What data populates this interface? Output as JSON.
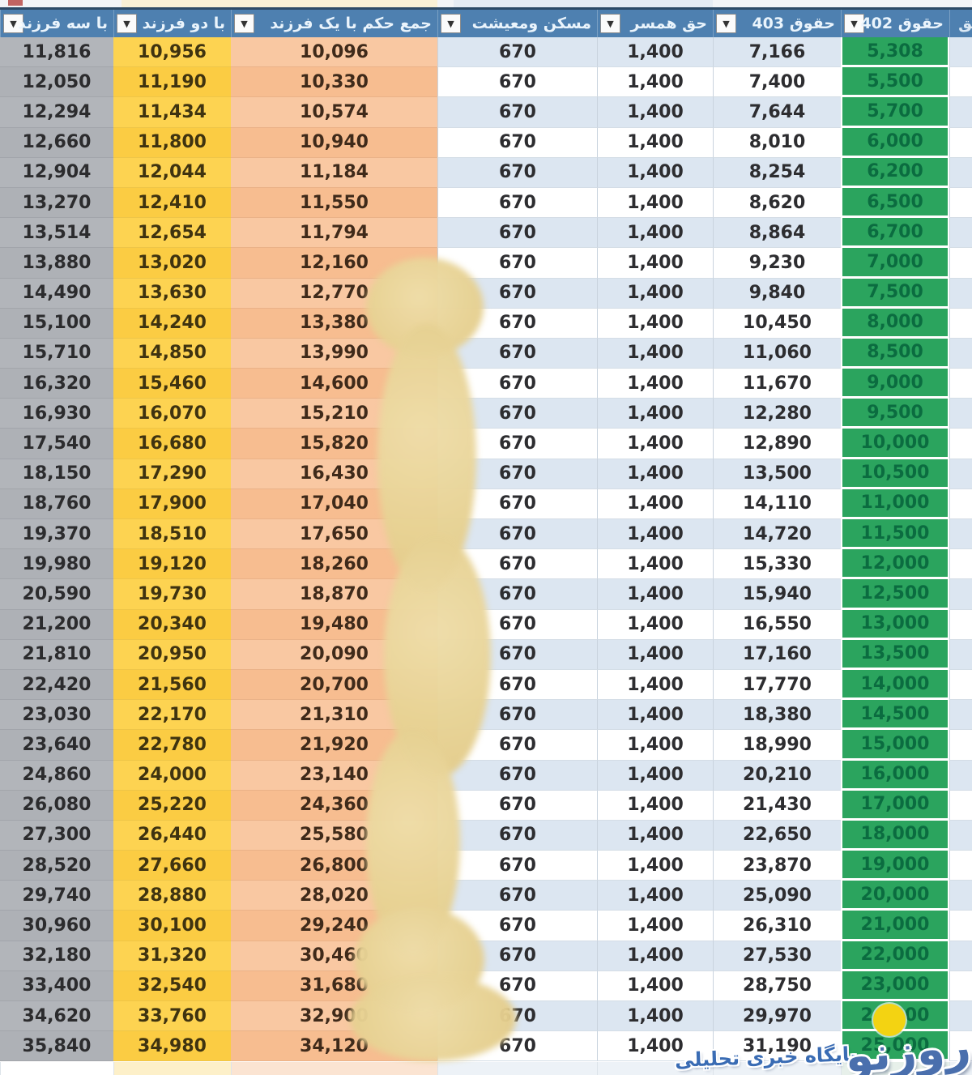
{
  "header": {
    "bg": "#4e80b0",
    "text_color": "#eaf4fc",
    "dropdown_icon": "▼",
    "sliver_partial_label": "حق"
  },
  "banding": {
    "odd": "#dce6f1",
    "even": "#ffffff"
  },
  "table": {
    "columns": [
      {
        "key": "three_children",
        "label": "با سه فرزند",
        "fill": "#b2b5ba",
        "fill_alt": "#aeb1b6",
        "type": "solid"
      },
      {
        "key": "two_children",
        "label": "با دو فرزند",
        "fill": "#fdd351",
        "fill_alt": "#fbcc43",
        "type": "solid"
      },
      {
        "key": "one_child_total",
        "label": "جمع حکم با یک فرزند",
        "fill": "#f9c8a2",
        "fill_alt": "#f7bd90",
        "type": "solid"
      },
      {
        "key": "housing",
        "label": "مسکن ومعیشت",
        "fill": "",
        "fill_alt": "",
        "type": "banded"
      },
      {
        "key": "spouse",
        "label": "حق همسر",
        "fill": "",
        "fill_alt": "",
        "type": "banded"
      },
      {
        "key": "salary_403",
        "label": "حقوق 403",
        "fill": "",
        "fill_alt": "",
        "type": "banded"
      },
      {
        "key": "salary_402",
        "label": "حقوق 402",
        "fill": "#2ba45e",
        "fill_alt": "#2ba45e",
        "type": "solid"
      }
    ],
    "rows": [
      [
        "11,816",
        "10,956",
        "10,096",
        "670",
        "1,400",
        "7,166",
        "5,308"
      ],
      [
        "12,050",
        "11,190",
        "10,330",
        "670",
        "1,400",
        "7,400",
        "5,500"
      ],
      [
        "12,294",
        "11,434",
        "10,574",
        "670",
        "1,400",
        "7,644",
        "5,700"
      ],
      [
        "12,660",
        "11,800",
        "10,940",
        "670",
        "1,400",
        "8,010",
        "6,000"
      ],
      [
        "12,904",
        "12,044",
        "11,184",
        "670",
        "1,400",
        "8,254",
        "6,200"
      ],
      [
        "13,270",
        "12,410",
        "11,550",
        "670",
        "1,400",
        "8,620",
        "6,500"
      ],
      [
        "13,514",
        "12,654",
        "11,794",
        "670",
        "1,400",
        "8,864",
        "6,700"
      ],
      [
        "13,880",
        "13,020",
        "12,160",
        "670",
        "1,400",
        "9,230",
        "7,000"
      ],
      [
        "14,490",
        "13,630",
        "12,770",
        "670",
        "1,400",
        "9,840",
        "7,500"
      ],
      [
        "15,100",
        "14,240",
        "13,380",
        "670",
        "1,400",
        "10,450",
        "8,000"
      ],
      [
        "15,710",
        "14,850",
        "13,990",
        "670",
        "1,400",
        "11,060",
        "8,500"
      ],
      [
        "16,320",
        "15,460",
        "14,600",
        "670",
        "1,400",
        "11,670",
        "9,000"
      ],
      [
        "16,930",
        "16,070",
        "15,210",
        "670",
        "1,400",
        "12,280",
        "9,500"
      ],
      [
        "17,540",
        "16,680",
        "15,820",
        "670",
        "1,400",
        "12,890",
        "10,000"
      ],
      [
        "18,150",
        "17,290",
        "16,430",
        "670",
        "1,400",
        "13,500",
        "10,500"
      ],
      [
        "18,760",
        "17,900",
        "17,040",
        "670",
        "1,400",
        "14,110",
        "11,000"
      ],
      [
        "19,370",
        "18,510",
        "17,650",
        "670",
        "1,400",
        "14,720",
        "11,500"
      ],
      [
        "19,980",
        "19,120",
        "18,260",
        "670",
        "1,400",
        "15,330",
        "12,000"
      ],
      [
        "20,590",
        "19,730",
        "18,870",
        "670",
        "1,400",
        "15,940",
        "12,500"
      ],
      [
        "21,200",
        "20,340",
        "19,480",
        "670",
        "1,400",
        "16,550",
        "13,000"
      ],
      [
        "21,810",
        "20,950",
        "20,090",
        "670",
        "1,400",
        "17,160",
        "13,500"
      ],
      [
        "22,420",
        "21,560",
        "20,700",
        "670",
        "1,400",
        "17,770",
        "14,000"
      ],
      [
        "23,030",
        "22,170",
        "21,310",
        "670",
        "1,400",
        "18,380",
        "14,500"
      ],
      [
        "23,640",
        "22,780",
        "21,920",
        "670",
        "1,400",
        "18,990",
        "15,000"
      ],
      [
        "24,860",
        "24,000",
        "23,140",
        "670",
        "1,400",
        "20,210",
        "16,000"
      ],
      [
        "26,080",
        "25,220",
        "24,360",
        "670",
        "1,400",
        "21,430",
        "17,000"
      ],
      [
        "27,300",
        "26,440",
        "25,580",
        "670",
        "1,400",
        "22,650",
        "18,000"
      ],
      [
        "28,520",
        "27,660",
        "26,800",
        "670",
        "1,400",
        "23,870",
        "19,000"
      ],
      [
        "29,740",
        "28,880",
        "28,020",
        "670",
        "1,400",
        "25,090",
        "20,000"
      ],
      [
        "30,960",
        "30,100",
        "29,240",
        "670",
        "1,400",
        "26,310",
        "21,000"
      ],
      [
        "32,180",
        "31,320",
        "30,460",
        "670",
        "1,400",
        "27,530",
        "22,000"
      ],
      [
        "33,400",
        "32,540",
        "31,680",
        "670",
        "1,400",
        "28,750",
        "23,000"
      ],
      [
        "34,620",
        "33,760",
        "32,900",
        "670",
        "1,400",
        "29,970",
        "24,000"
      ],
      [
        "35,840",
        "34,980",
        "34,120",
        "670",
        "1,400",
        "31,190",
        "25,000"
      ]
    ],
    "value_text_colors": {
      "three_children": "#2c2c2e",
      "two_children": "#3f3310",
      "one_child_total": "#3f2a1a",
      "housing": "#2d2d30",
      "spouse": "#2d2d30",
      "salary_403": "#2d2d30",
      "salary_402": "#0b6c40"
    }
  },
  "watermark": {
    "logo_text": "روزنو",
    "tagline": "پایگاه خبری تحلیلی",
    "logo_color": "#4a6fad",
    "tagline_color": "#3a6cb4",
    "circle_color": "#f3d312"
  }
}
